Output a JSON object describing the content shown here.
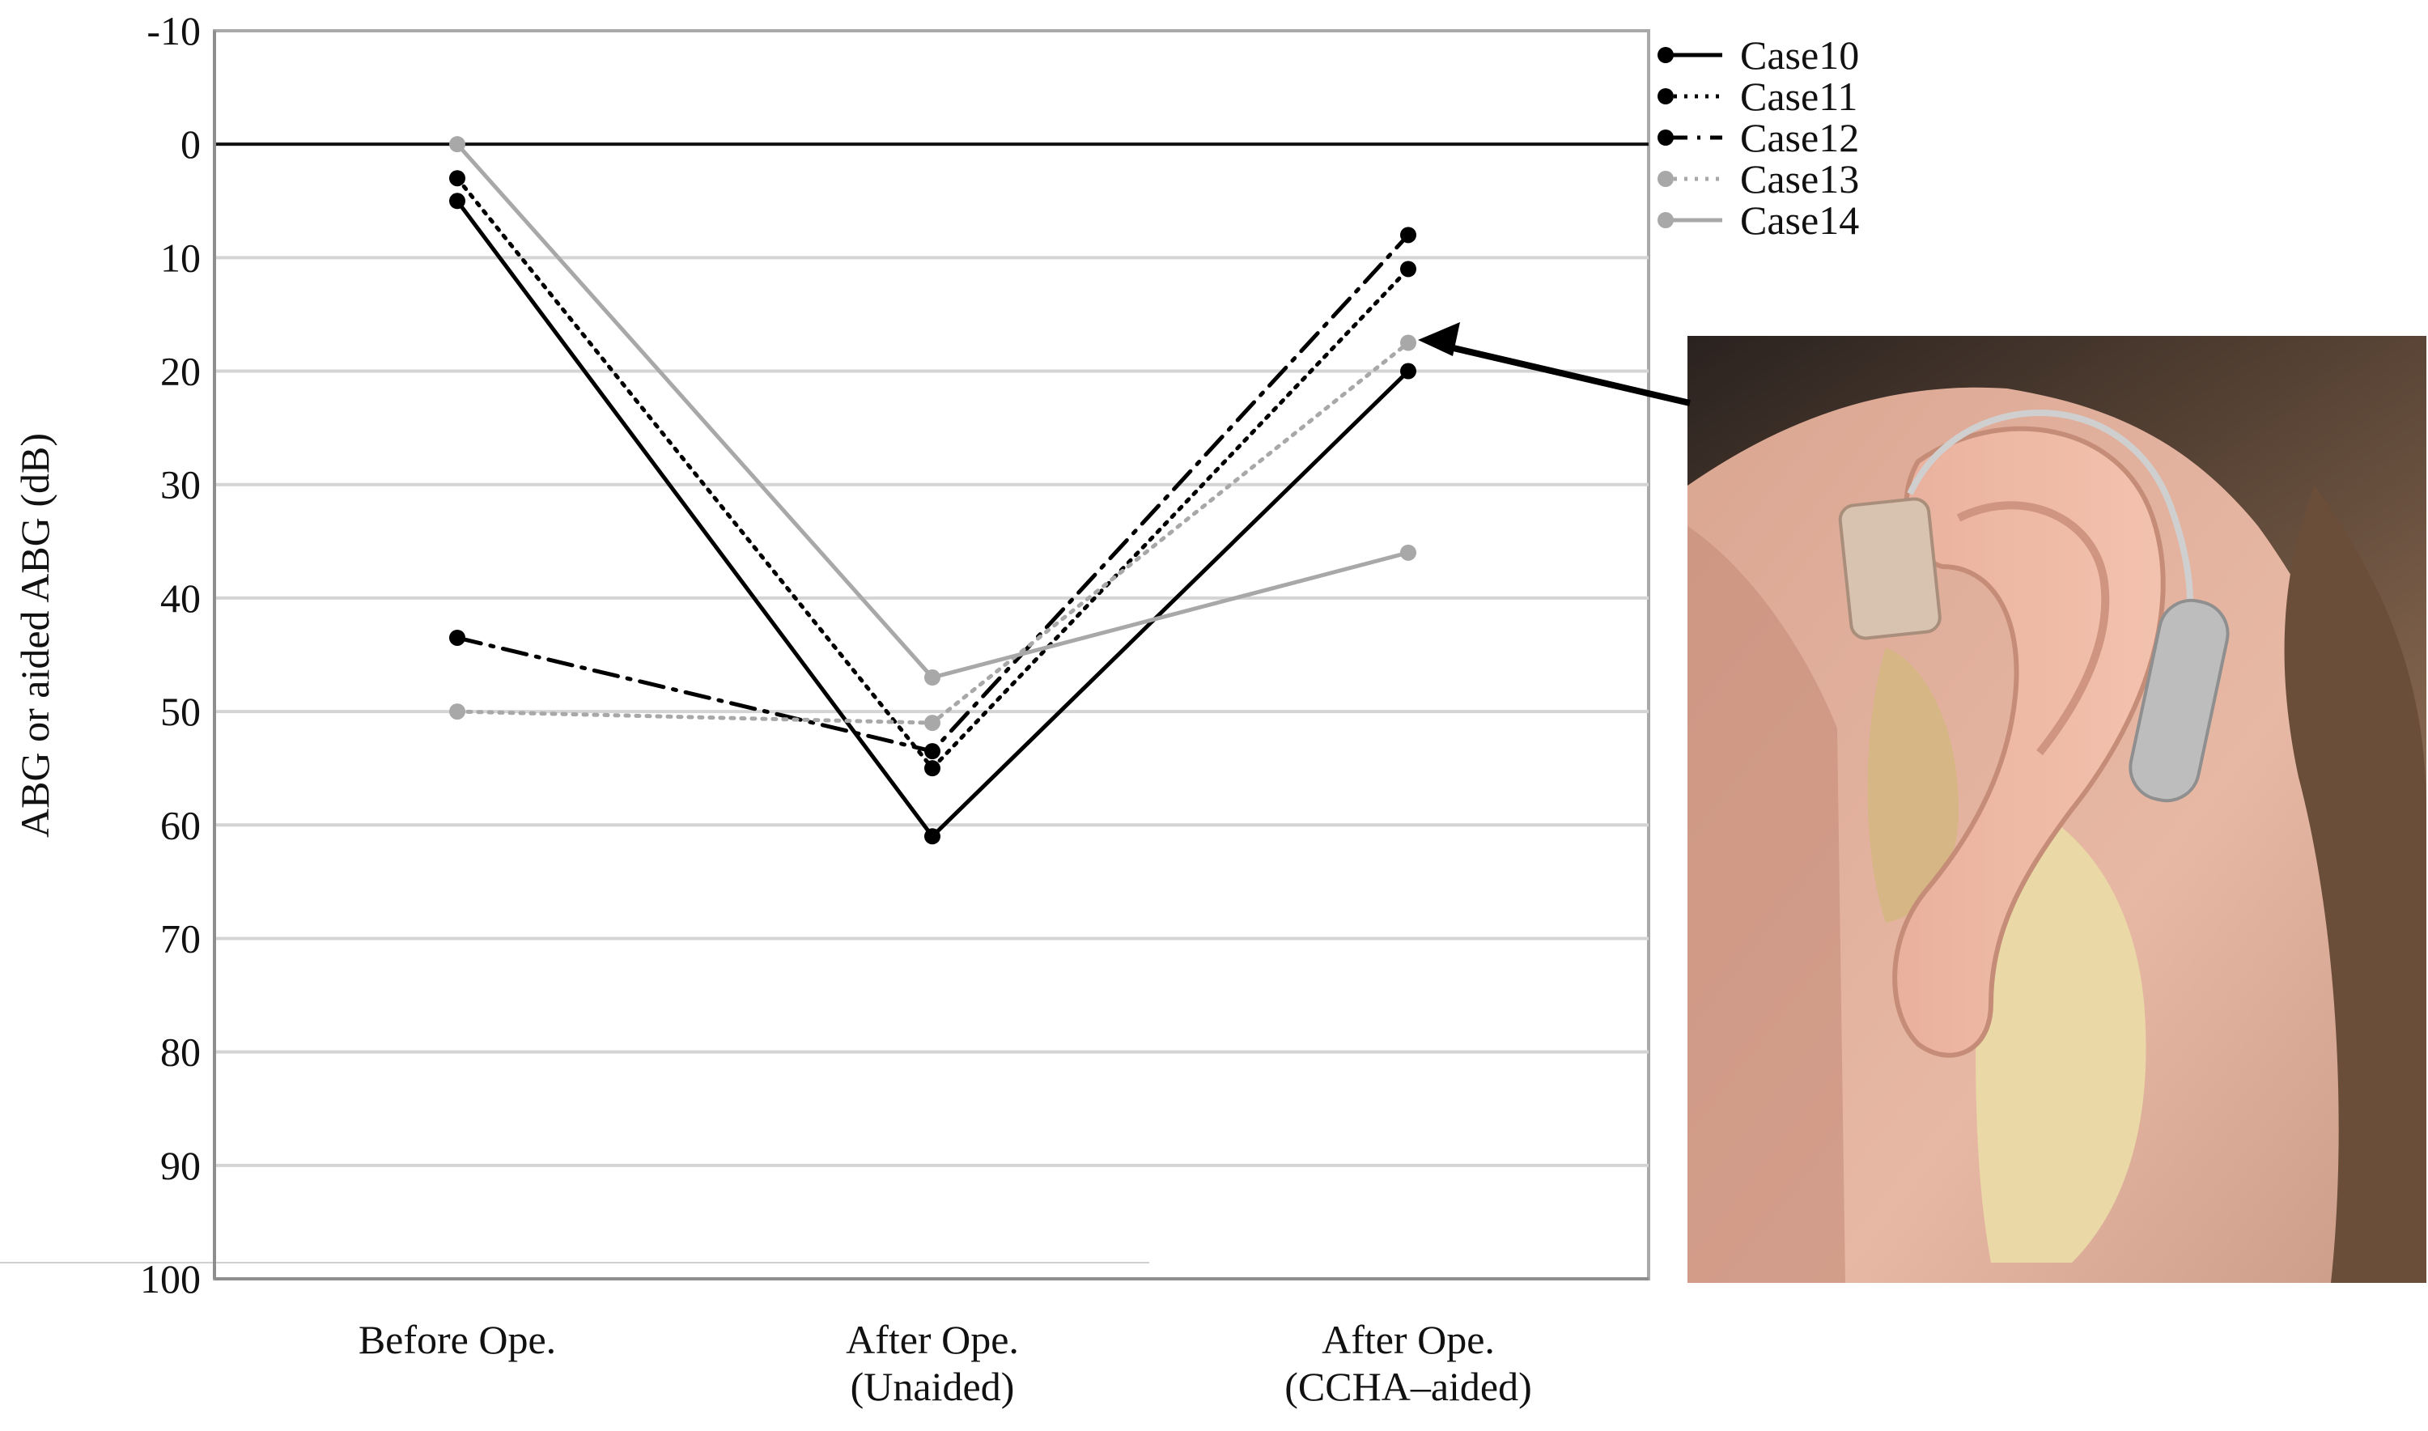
{
  "chart_data": {
    "type": "line",
    "ylabel": "ABG or aided ABG (dB)",
    "xlabel": "",
    "ylim": [
      -10,
      100
    ],
    "y_inverted": true,
    "yticks": [
      -10,
      0,
      10,
      20,
      30,
      40,
      50,
      60,
      70,
      80,
      90,
      100
    ],
    "grid": "horizontal",
    "legend_position": "top-right",
    "categories": [
      [
        "Before Ope."
      ],
      [
        "After Ope.",
        "(Unaided)"
      ],
      [
        "After Ope.",
        "(CCHA–aided)"
      ]
    ],
    "series": [
      {
        "name": "Case10",
        "values": [
          5,
          61,
          20
        ],
        "color": "#000000",
        "style": "solid"
      },
      {
        "name": "Case11",
        "values": [
          3,
          55,
          11
        ],
        "color": "#000000",
        "style": "dotted"
      },
      {
        "name": "Case12",
        "values": [
          43.5,
          53.5,
          8
        ],
        "color": "#000000",
        "style": "dashdot"
      },
      {
        "name": "Case13",
        "values": [
          50,
          51,
          17.5
        ],
        "color": "#a8a8a8",
        "style": "dotted"
      },
      {
        "name": "Case14",
        "values": [
          0,
          47,
          36
        ],
        "color": "#a8a8a8",
        "style": "solid"
      }
    ],
    "reference_line": 0,
    "inset_photo": {
      "description": "ear-with-hearing-aid",
      "points_to_series": "Case13"
    }
  }
}
